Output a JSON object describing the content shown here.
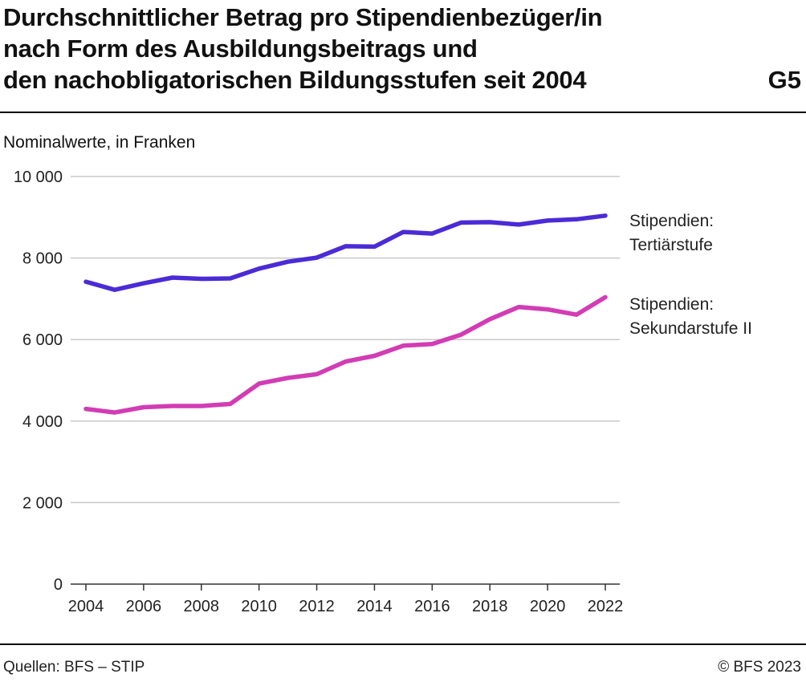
{
  "header": {
    "title_lines": [
      "Durchschnittlicher Betrag pro Stipendienbezüger/in",
      "nach Form des Ausbildungsbeitrags und",
      "den nachobligatorischen Bildungsstufen seit 2004"
    ],
    "code": "G5"
  },
  "chart_data": {
    "type": "line",
    "subtitle": "Nominalwerte, in Franken",
    "x": [
      2004,
      2005,
      2006,
      2007,
      2008,
      2009,
      2010,
      2011,
      2012,
      2013,
      2014,
      2015,
      2016,
      2017,
      2018,
      2019,
      2020,
      2021,
      2022
    ],
    "x_ticks": [
      2004,
      2006,
      2008,
      2010,
      2012,
      2014,
      2016,
      2018,
      2020,
      2022
    ],
    "y_ticks": [
      0,
      2000,
      4000,
      6000,
      8000,
      10000
    ],
    "y_tick_labels": [
      "0",
      "2 000",
      "4 000",
      "6 000",
      "8 000",
      "10 000"
    ],
    "ylim": [
      0,
      10000
    ],
    "grid": true,
    "series": [
      {
        "name_lines": [
          "Stipendien:",
          "Tertiärstufe"
        ],
        "color": "#4b2bd6",
        "values": [
          7420,
          7220,
          7380,
          7520,
          7490,
          7500,
          7740,
          7910,
          8010,
          8290,
          8280,
          8640,
          8600,
          8870,
          8880,
          8820,
          8920,
          8950,
          9040
        ]
      },
      {
        "name_lines": [
          "Stipendien:",
          "Sekundarstufe II"
        ],
        "color": "#d23cb4",
        "values": [
          4300,
          4210,
          4340,
          4370,
          4370,
          4420,
          4920,
          5060,
          5150,
          5460,
          5600,
          5850,
          5890,
          6120,
          6500,
          6800,
          6740,
          6610,
          7040
        ]
      }
    ]
  },
  "footer": {
    "source": "Quellen: BFS – STIP",
    "copyright": "© BFS 2023"
  }
}
